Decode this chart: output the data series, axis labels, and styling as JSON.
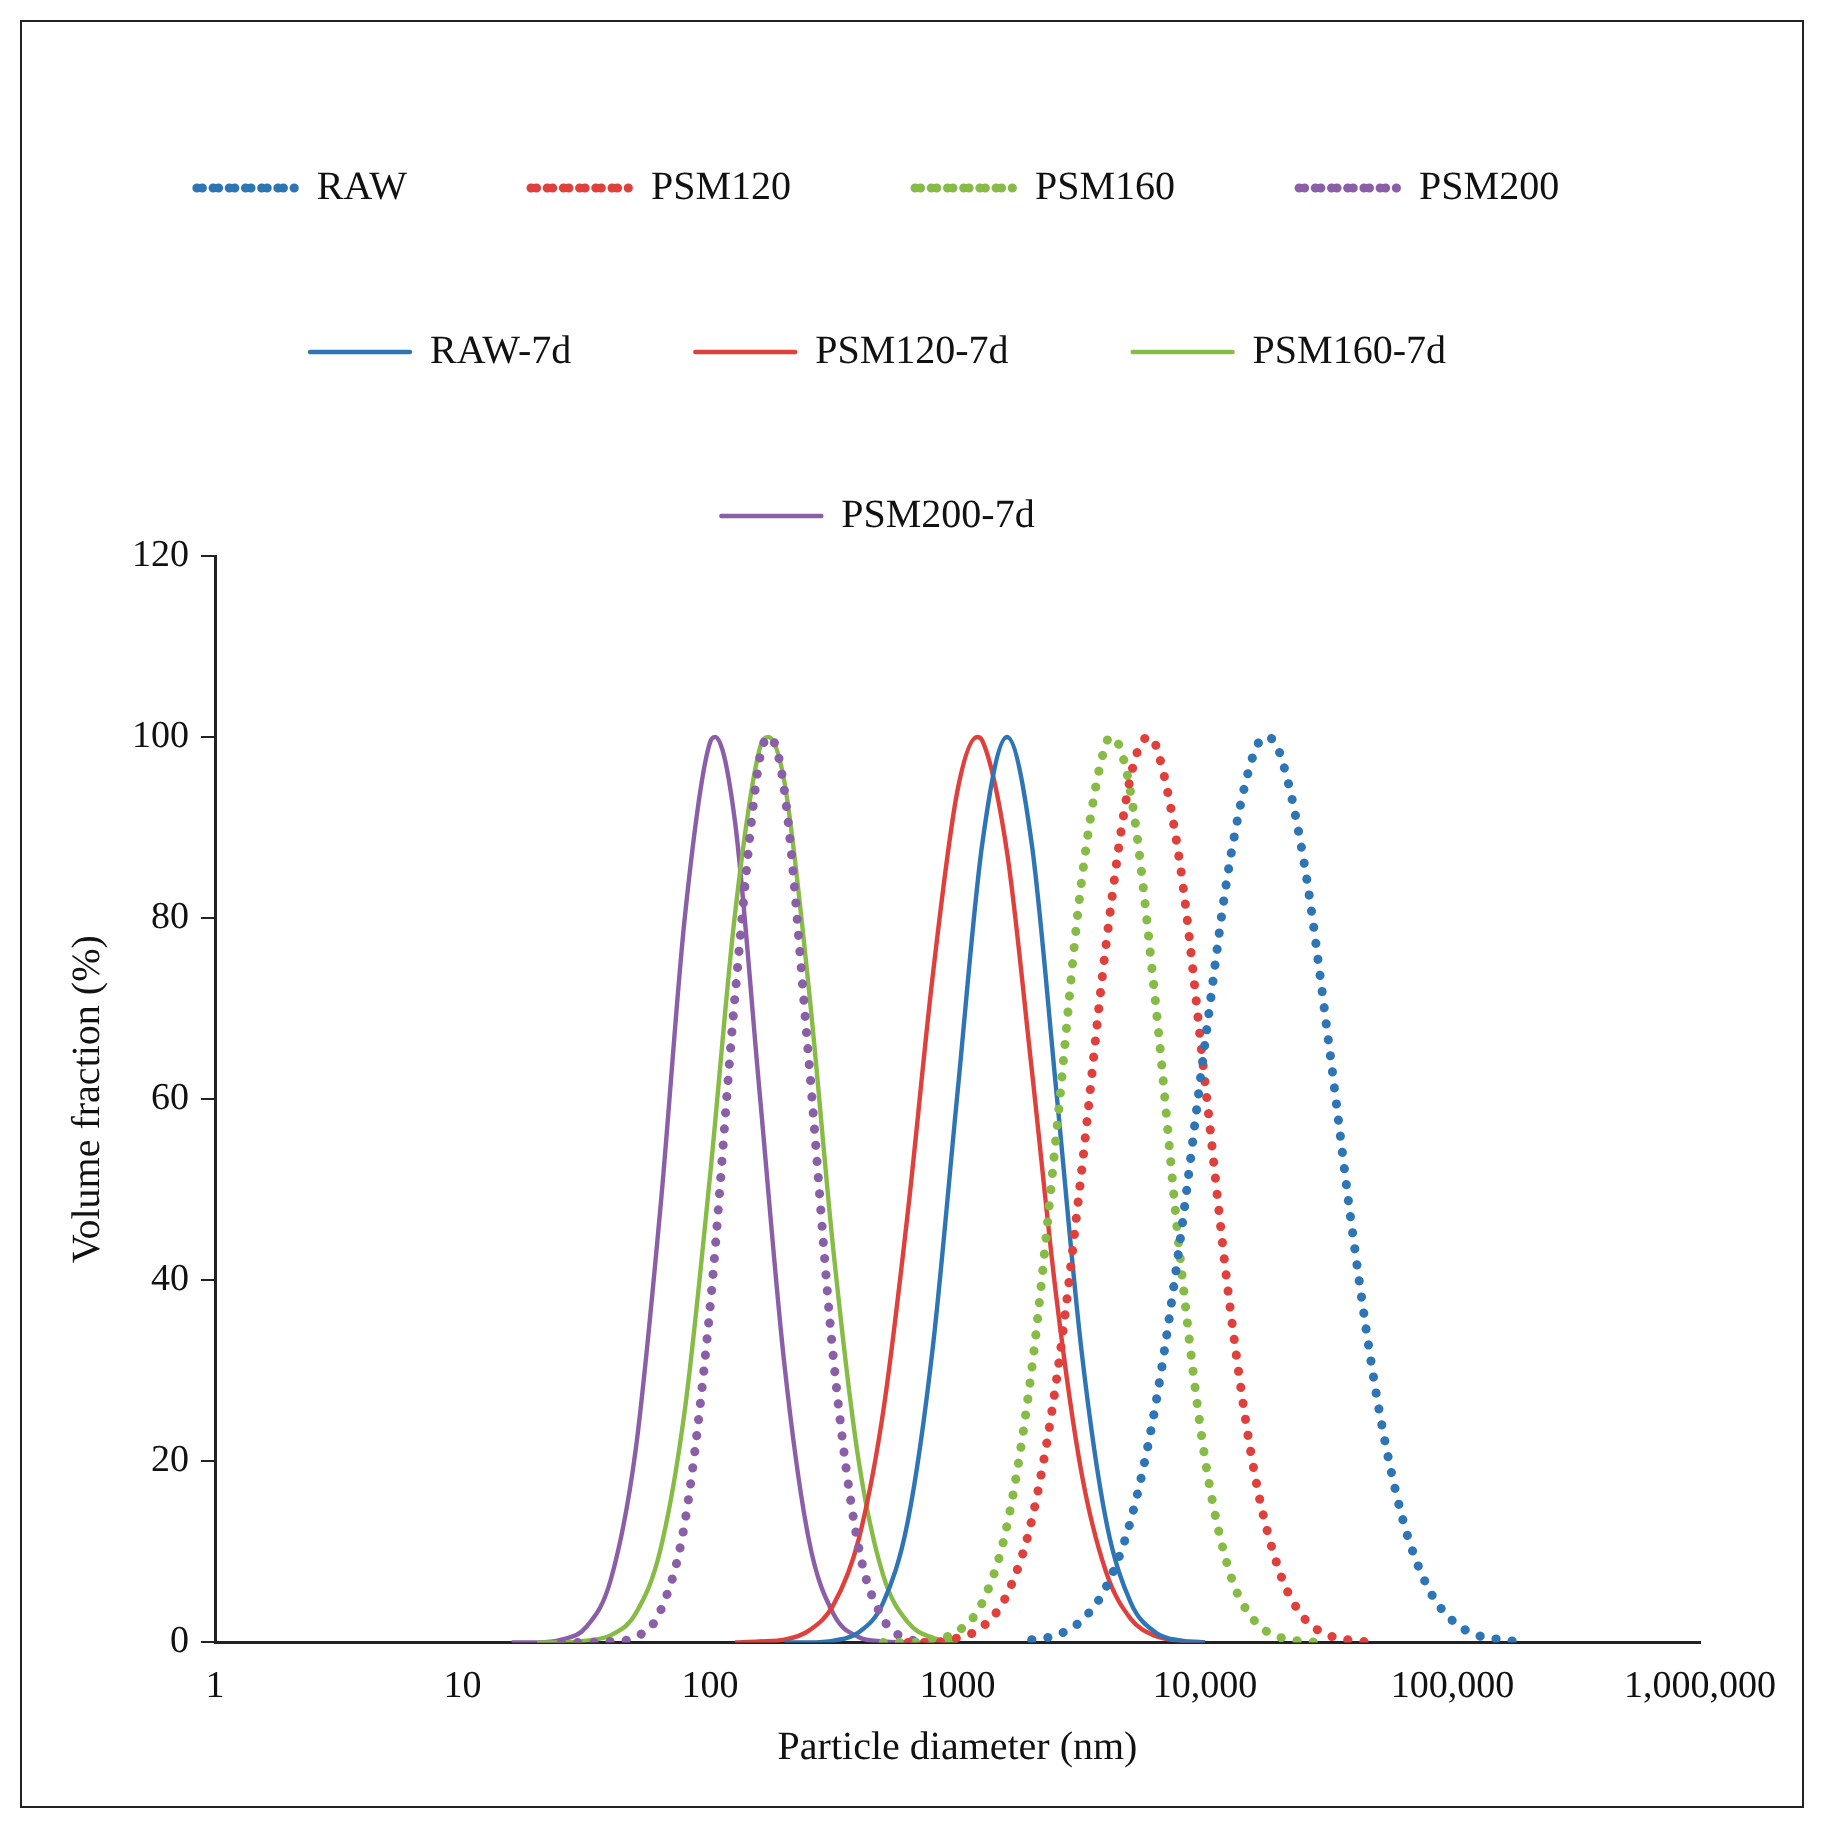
{
  "chart_data": {
    "type": "line",
    "xlabel": "Particle diameter (nm)",
    "ylabel": "Volume fraction (%)",
    "log": "x",
    "grid": false,
    "legend": "top",
    "marker": "none",
    "xlim": [
      1,
      1000000
    ],
    "xticks": [
      1,
      10,
      100,
      1000,
      {
        "value": 10000,
        "label": "10,000"
      },
      {
        "value": 100000,
        "label": "100,000"
      },
      {
        "value": 1000000,
        "label": "1,000,000"
      }
    ],
    "ylim": [
      0,
      120
    ],
    "yticks": [
      0,
      20,
      40,
      60,
      80,
      100,
      120
    ],
    "series": [
      {
        "name": "RAW",
        "color": "#2e75b6",
        "line_style": "dotted",
        "x": [
          1995,
          2512,
          3162,
          3981,
          5012,
          6310,
          7943,
          10000,
          12589,
          15849,
          17783,
          19953,
          25119,
          31623,
          39811,
          50119,
          63096,
          79433,
          100000,
          125893,
          158489,
          199526
        ],
        "values": [
          0.3,
          0.8,
          2.4,
          6.1,
          13.5,
          26.2,
          44.5,
          66.2,
          86.2,
          98.4,
          100,
          98.4,
          86.2,
          66.2,
          44.5,
          26.2,
          13.5,
          6.1,
          2.4,
          0.8,
          0.3,
          0
        ]
      },
      {
        "name": "PSM120",
        "color": "#e0403c",
        "line_style": "dotted",
        "x": [
          631,
          794,
          1000,
          1259,
          1585,
          1995,
          2512,
          3162,
          3981,
          5012,
          5888,
          6310,
          7943,
          10000,
          12589,
          15849,
          19953,
          25119,
          31623,
          39811,
          50119
        ],
        "values": [
          0,
          0,
          0.5,
          1.7,
          5.3,
          13.5,
          29,
          51.7,
          77,
          95.7,
          100,
          99.2,
          85.8,
          61.9,
          37.3,
          18.7,
          7.9,
          2.7,
          0.8,
          0.2,
          0
        ]
      },
      {
        "name": "PSM160",
        "color": "#86bc46",
        "line_style": "dotted",
        "x": [
          501,
          631,
          794,
          1000,
          1259,
          1585,
          1995,
          2512,
          3162,
          3981,
          4217,
          5012,
          6310,
          7943,
          10000,
          12589,
          15849,
          19953,
          25119,
          31623
        ],
        "values": [
          0,
          0,
          0.3,
          1.2,
          4.4,
          12.9,
          30.2,
          56.3,
          83.8,
          99.3,
          100,
          93.8,
          70.7,
          42.4,
          20.3,
          7.7,
          2.4,
          0.6,
          0.1,
          0
        ]
      },
      {
        "name": "PSM200",
        "color": "#8a5fa8",
        "line_style": "dotted",
        "x": [
          25.1,
          31.6,
          39.8,
          50.1,
          63.1,
          79.4,
          100,
          126,
          158,
          174,
          200,
          251,
          316,
          398,
          501,
          631,
          794
        ],
        "values": [
          0,
          0,
          0.1,
          0.6,
          3.5,
          13.5,
          36.9,
          71.2,
          97.3,
          100,
          94,
          64.2,
          31.1,
          10.6,
          2.6,
          0.4,
          0
        ]
      },
      {
        "name": "RAW-7d",
        "color": "#2e75b6",
        "line_style": "solid",
        "x": [
          200,
          251,
          316,
          398,
          501,
          631,
          794,
          1000,
          1259,
          1585,
          1995,
          2512,
          3162,
          3981,
          5012,
          6310,
          7943,
          10000
        ],
        "values": [
          0,
          0,
          0.2,
          1.1,
          4.4,
          13.5,
          32.5,
          60.7,
          88.2,
          100,
          88.2,
          60.7,
          32.5,
          13.5,
          4.4,
          1.1,
          0.2,
          0
        ]
      },
      {
        "name": "PSM120-7d",
        "color": "#e0403c",
        "line_style": "solid",
        "x": [
          126,
          158,
          200,
          251,
          316,
          398,
          501,
          631,
          794,
          1000,
          1202,
          1259,
          1585,
          1995,
          2512,
          3162,
          3981,
          5012,
          6310,
          7943,
          10000
        ],
        "values": [
          0,
          0.1,
          0.3,
          1.3,
          4.2,
          11.3,
          25.5,
          47.7,
          73.6,
          94.1,
          100,
          99.6,
          87.3,
          63.3,
          38,
          18.9,
          7.8,
          2.6,
          0.7,
          0.2,
          0
        ]
      },
      {
        "name": "PSM160-7d",
        "color": "#86bc46",
        "line_style": "solid",
        "x": [
          20,
          25.1,
          31.6,
          39.8,
          50.1,
          63.1,
          79.4,
          100,
          126,
          158,
          172,
          200,
          251,
          316,
          398,
          501,
          631,
          794,
          1000
        ],
        "values": [
          0,
          0,
          0.2,
          0.8,
          3.2,
          10.3,
          26,
          51.5,
          80.3,
          98.5,
          100,
          95,
          72.1,
          43,
          20.2,
          7.4,
          2.2,
          0.5,
          0
        ]
      },
      {
        "name": "PSM200-7d",
        "color": "#8a5fa8",
        "line_style": "solid",
        "x": [
          15.8,
          20,
          25.1,
          31.6,
          39.8,
          50.1,
          63.1,
          79.4,
          100,
          105,
          126,
          158,
          200,
          251,
          316,
          398,
          501,
          631
        ],
        "values": [
          0,
          0,
          0.3,
          1.7,
          7,
          21.3,
          48.1,
          80.5,
          99.4,
          100,
          90.8,
          61.3,
          30.6,
          11.3,
          3.1,
          0.6,
          0.1,
          0
        ]
      }
    ]
  }
}
